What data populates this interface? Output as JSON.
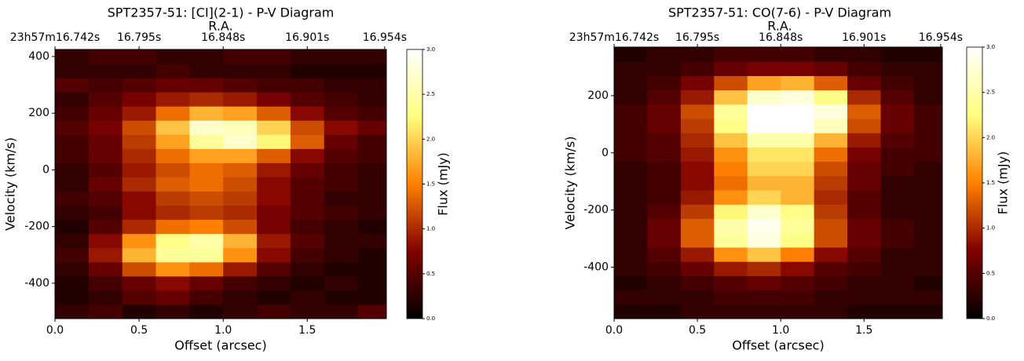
{
  "chart_data": [
    {
      "type": "heatmap",
      "title": "SPT2357-51: [CI](2-1) - P-V Diagram",
      "top_axis_label": "R.A.",
      "x_label": "Offset (arcsec)",
      "y_label": "Velocity (km/s)",
      "colorbar_label": "Flux (mJy)",
      "colormap": "afmhot",
      "xlim": [
        0,
        1.97
      ],
      "ylim": [
        -525,
        425
      ],
      "clim": [
        0,
        3
      ],
      "xticks": [
        {
          "value": 0,
          "label": "0.0"
        },
        0.5,
        {
          "value": 1,
          "label": "1.0"
        },
        1.5
      ],
      "top_ticks": [
        {
          "value": 0,
          "label": "23h57m16.742s"
        },
        {
          "value": 0.5,
          "label": "16.795s"
        },
        {
          "value": 1,
          "label": "16.848s"
        },
        {
          "value": 1.5,
          "label": "16.901s"
        },
        {
          "value": 1.96,
          "label": "16.954s"
        }
      ],
      "yticks": [
        -400,
        -200,
        0,
        200,
        400
      ],
      "cticks": [
        {
          "value": 0,
          "label": "0.0"
        },
        0.5,
        {
          "value": 1,
          "label": "1.0"
        },
        1.5,
        {
          "value": 2,
          "label": "2.0"
        },
        2.5,
        {
          "value": 3,
          "label": "3.0"
        }
      ],
      "x_bins": [
        0,
        0.2,
        0.4,
        0.6,
        0.8,
        1.0,
        1.2,
        1.4,
        1.6,
        1.8,
        1.97
      ],
      "y_bins": [
        -525,
        -475,
        -425,
        -375,
        -325,
        -275,
        -225,
        -175,
        -125,
        -75,
        -25,
        25,
        75,
        125,
        175,
        225,
        275,
        325,
        375,
        425
      ],
      "z": [
        [
          0.3,
          0.4,
          0.2,
          0.3,
          0.2,
          0.3,
          0.4,
          0.3,
          0.3,
          0.5
        ],
        [
          0.2,
          0.3,
          0.5,
          0.6,
          0.4,
          0.3,
          0.2,
          0.3,
          0.2,
          0.2
        ],
        [
          0.2,
          0.4,
          0.6,
          0.8,
          0.6,
          0.4,
          0.3,
          0.2,
          0.3,
          0.2
        ],
        [
          0.3,
          0.6,
          1.2,
          1.6,
          1.4,
          0.9,
          0.5,
          0.3,
          0.2,
          0.2
        ],
        [
          0.4,
          0.9,
          1.8,
          2.4,
          2.4,
          1.6,
          0.8,
          0.4,
          0.3,
          0.2
        ],
        [
          0.3,
          0.8,
          1.6,
          2.3,
          2.5,
          1.8,
          0.9,
          0.5,
          0.3,
          0.3
        ],
        [
          0.2,
          0.5,
          1.0,
          1.4,
          1.5,
          1.2,
          0.7,
          0.4,
          0.3,
          0.2
        ],
        [
          0.3,
          0.4,
          0.8,
          1.0,
          1.1,
          1.0,
          0.7,
          0.5,
          0.4,
          0.3
        ],
        [
          0.4,
          0.5,
          0.8,
          1.1,
          1.2,
          1.1,
          0.8,
          0.5,
          0.3,
          0.3
        ],
        [
          0.3,
          0.6,
          1.0,
          1.3,
          1.4,
          1.2,
          0.8,
          0.5,
          0.4,
          0.3
        ],
        [
          0.3,
          0.5,
          0.9,
          1.2,
          1.4,
          1.3,
          0.9,
          0.6,
          0.4,
          0.3
        ],
        [
          0.4,
          0.6,
          1.0,
          1.4,
          1.7,
          1.7,
          1.3,
          0.8,
          0.5,
          0.4
        ],
        [
          0.4,
          0.6,
          1.1,
          1.7,
          2.4,
          2.7,
          2.2,
          1.3,
          0.6,
          0.4
        ],
        [
          0.5,
          0.7,
          1.2,
          1.9,
          2.7,
          2.6,
          2.0,
          1.2,
          0.8,
          0.6
        ],
        [
          0.4,
          0.6,
          0.9,
          1.4,
          1.8,
          1.7,
          1.3,
          0.8,
          0.5,
          0.4
        ],
        [
          0.3,
          0.5,
          0.7,
          0.9,
          1.0,
          0.9,
          0.7,
          0.5,
          0.4,
          0.3
        ],
        [
          0.5,
          0.4,
          0.5,
          0.6,
          0.6,
          0.5,
          0.4,
          0.4,
          0.3,
          0.3
        ],
        [
          0.3,
          0.3,
          0.3,
          0.4,
          0.3,
          0.3,
          0.3,
          0.2,
          0.2,
          0.2
        ],
        [
          0.3,
          0.4,
          0.4,
          0.3,
          0.3,
          0.4,
          0.4,
          0.3,
          0.3,
          0.3
        ]
      ]
    },
    {
      "type": "heatmap",
      "title": "SPT2357-51: CO(7-6) - P-V Diagram",
      "top_axis_label": "R.A.",
      "x_label": "Offset (arcsec)",
      "y_label": "Velocity (km/s)",
      "colorbar_label": "Flux (mJy)",
      "colormap": "afmhot",
      "xlim": [
        0,
        1.97
      ],
      "ylim": [
        -580,
        370
      ],
      "clim": [
        0,
        3
      ],
      "xticks": [
        {
          "value": 0,
          "label": "0.0"
        },
        0.5,
        {
          "value": 1,
          "label": "1.0"
        },
        1.5
      ],
      "top_ticks": [
        {
          "value": 0,
          "label": "23h57m16.742s"
        },
        {
          "value": 0.5,
          "label": "16.795s"
        },
        {
          "value": 1,
          "label": "16.848s"
        },
        {
          "value": 1.5,
          "label": "16.901s"
        },
        {
          "value": 1.96,
          "label": "16.954s"
        }
      ],
      "yticks": [
        -400,
        -200,
        0,
        200
      ],
      "cticks": [
        {
          "value": 0,
          "label": "0.0"
        },
        0.5,
        {
          "value": 1,
          "label": "1.0"
        },
        1.5,
        {
          "value": 2,
          "label": "2.0"
        },
        2.5,
        {
          "value": 3,
          "label": "3.0"
        }
      ],
      "x_bins": [
        0,
        0.2,
        0.4,
        0.6,
        0.8,
        1.0,
        1.2,
        1.4,
        1.6,
        1.8,
        1.97
      ],
      "y_bins": [
        -580,
        -530,
        -480,
        -430,
        -380,
        -330,
        -280,
        -230,
        -180,
        -130,
        -80,
        -30,
        20,
        70,
        120,
        170,
        220,
        270,
        320,
        370
      ],
      "z": [
        [
          0.2,
          0.2,
          0.3,
          0.3,
          0.3,
          0.3,
          0.3,
          0.2,
          0.2,
          0.2
        ],
        [
          0.3,
          0.3,
          0.3,
          0.4,
          0.4,
          0.4,
          0.3,
          0.3,
          0.3,
          0.3
        ],
        [
          0.2,
          0.3,
          0.4,
          0.5,
          0.6,
          0.5,
          0.4,
          0.3,
          0.3,
          0.2
        ],
        [
          0.3,
          0.4,
          0.6,
          0.9,
          1.0,
          0.8,
          0.5,
          0.4,
          0.3,
          0.3
        ],
        [
          0.3,
          0.5,
          0.9,
          1.6,
          1.9,
          1.5,
          0.8,
          0.5,
          0.3,
          0.3
        ],
        [
          0.3,
          0.6,
          1.3,
          2.4,
          2.8,
          2.3,
          1.2,
          0.6,
          0.4,
          0.3
        ],
        [
          0.3,
          0.6,
          1.3,
          2.5,
          2.9,
          2.4,
          1.2,
          0.6,
          0.4,
          0.3
        ],
        [
          0.3,
          0.5,
          1.1,
          2.2,
          2.7,
          2.3,
          1.1,
          0.5,
          0.3,
          0.3
        ],
        [
          0.3,
          0.4,
          0.9,
          1.6,
          2.0,
          1.8,
          1.0,
          0.5,
          0.3,
          0.3
        ],
        [
          0.3,
          0.4,
          0.8,
          1.4,
          1.8,
          1.8,
          1.1,
          0.6,
          0.3,
          0.3
        ],
        [
          0.3,
          0.4,
          0.8,
          1.5,
          2.0,
          2.0,
          1.2,
          0.6,
          0.4,
          0.3
        ],
        [
          0.4,
          0.5,
          0.9,
          1.6,
          2.1,
          2.1,
          1.4,
          0.7,
          0.4,
          0.4
        ],
        [
          0.4,
          0.5,
          1.0,
          1.9,
          2.5,
          2.5,
          1.8,
          0.9,
          0.5,
          0.4
        ],
        [
          0.4,
          0.6,
          1.1,
          2.3,
          3.0,
          3.0,
          2.6,
          1.2,
          0.6,
          0.4
        ],
        [
          0.4,
          0.6,
          1.2,
          2.4,
          3.0,
          3.0,
          2.8,
          1.3,
          0.6,
          0.4
        ],
        [
          0.3,
          0.5,
          0.9,
          1.9,
          2.7,
          2.8,
          2.3,
          1.0,
          0.5,
          0.3
        ],
        [
          0.3,
          0.4,
          0.7,
          1.2,
          1.7,
          1.8,
          1.3,
          0.6,
          0.4,
          0.3
        ],
        [
          0.3,
          0.3,
          0.4,
          0.6,
          0.7,
          0.7,
          0.6,
          0.4,
          0.3,
          0.3
        ],
        [
          0.2,
          0.3,
          0.3,
          0.4,
          0.4,
          0.4,
          0.3,
          0.3,
          0.2,
          0.2
        ]
      ]
    }
  ]
}
